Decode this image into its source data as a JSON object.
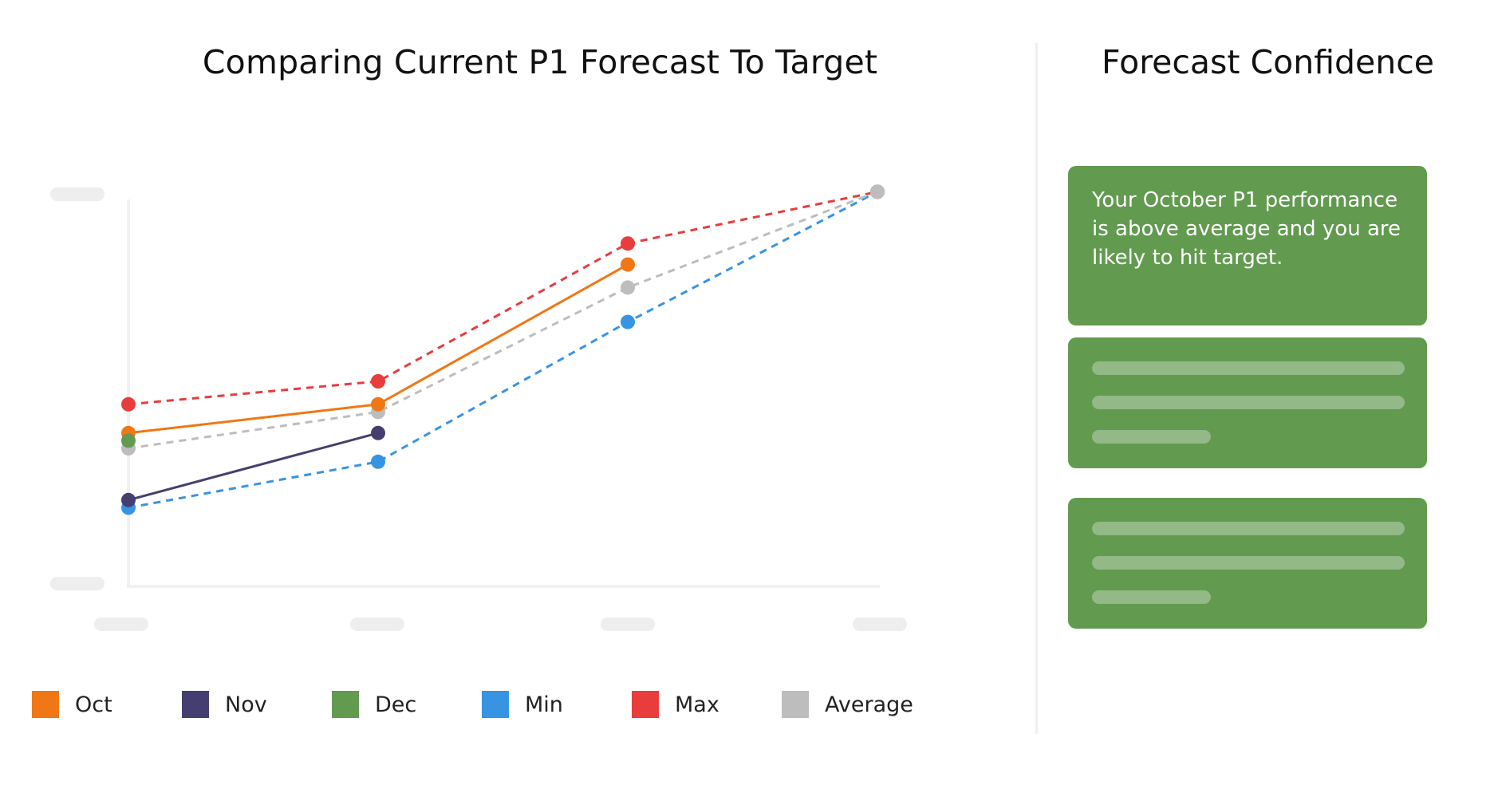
{
  "chart_title": "Comparing Current P1 Forecast To Target",
  "panel_title": "Forecast Confidence",
  "confidence_message": "Your October P1 performance is above average and you are likely to hit target.",
  "chart_data": {
    "type": "line",
    "title": "Comparing Current P1 Forecast To Target",
    "xlabel": "",
    "ylabel": "",
    "x": [
      0,
      1,
      2,
      3
    ],
    "ylim": [
      0,
      100
    ],
    "grid": false,
    "axis_labels_hidden": true,
    "legend_position": "bottom",
    "series": [
      {
        "name": "Oct",
        "color": "#ef7716",
        "dash": "solid",
        "values": [
          39,
          46.5,
          83,
          null
        ]
      },
      {
        "name": "Nov",
        "color": "#453f71",
        "dash": "solid",
        "values": [
          21.5,
          39,
          null,
          null
        ]
      },
      {
        "name": "Dec",
        "color": "#629a50",
        "dash": "solid",
        "values": [
          37,
          null,
          null,
          null
        ]
      },
      {
        "name": "Min",
        "color": "#3794e3",
        "dash": "dashed",
        "values": [
          19.5,
          31.5,
          68,
          102
        ]
      },
      {
        "name": "Max",
        "color": "#e83c3d",
        "dash": "dashed",
        "values": [
          46.5,
          52.5,
          88.5,
          102
        ]
      },
      {
        "name": "Average",
        "color": "#bdbdbd",
        "dash": "dashed",
        "values": [
          35,
          44.5,
          77,
          102
        ]
      }
    ]
  },
  "colors": {
    "card_background": "#629a50",
    "placeholder": "#eeeeee",
    "divider": "#efefef"
  }
}
